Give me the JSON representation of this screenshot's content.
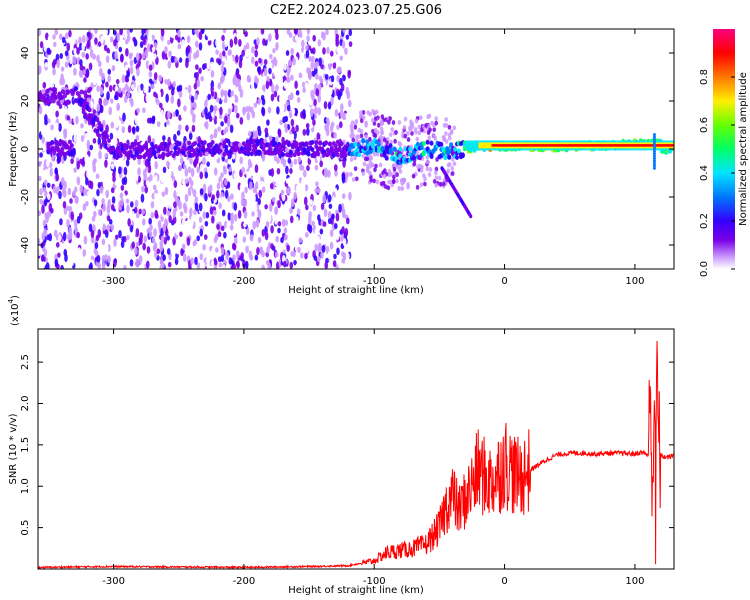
{
  "title": "C2E2.2024.023.07.25.G06",
  "chart_data": [
    {
      "type": "heatmap",
      "xlabel": "Height of straight line (km)",
      "ylabel": "Frequency (Hz)",
      "xlim": [
        -358,
        130
      ],
      "ylim": [
        -50,
        50
      ],
      "xticks": [
        -300,
        -200,
        -100,
        0,
        100
      ],
      "yticks": [
        -40,
        -20,
        0,
        20,
        40
      ],
      "grid": false,
      "colorbar": {
        "label": "Normalized spectral amplitude",
        "range": [
          0,
          1
        ],
        "ticks": [
          0.0,
          0.2,
          0.4,
          0.6,
          0.8
        ],
        "colormap": [
          "#ffffff",
          "#cc99ff",
          "#7a00e6",
          "#3300ff",
          "#0077ff",
          "#00e5ff",
          "#00ff66",
          "#66ff00",
          "#ffee00",
          "#ff7700",
          "#ff0000",
          "#ff0080"
        ]
      },
      "ridge": [
        {
          "x": -330,
          "y": 24
        },
        {
          "x": -300,
          "y": -1
        },
        {
          "x": -250,
          "y": 0
        },
        {
          "x": -200,
          "y": 1
        },
        {
          "x": -150,
          "y": 0
        },
        {
          "x": -120,
          "y": 0
        },
        {
          "x": -100,
          "y": 1
        },
        {
          "x": -80,
          "y": -3
        },
        {
          "x": -60,
          "y": 0
        },
        {
          "x": -40,
          "y": -1
        },
        {
          "x": -20,
          "y": 1
        },
        {
          "x": 0,
          "y": 1
        },
        {
          "x": 50,
          "y": 1
        },
        {
          "x": 100,
          "y": 2
        },
        {
          "x": 120,
          "y": 2
        }
      ]
    },
    {
      "type": "line",
      "xlabel": "Height of straight line (km)",
      "ylabel": "SNR (10 * v/v)",
      "yscale_note": "(x10",
      "yscale_exp": "4",
      "xlim": [
        -358,
        130
      ],
      "ylim": [
        0,
        2.9
      ],
      "xticks": [
        -300,
        -200,
        -100,
        0,
        100
      ],
      "yticks": [
        0.5,
        1.0,
        1.5,
        2.0,
        2.5
      ],
      "grid": false,
      "color": "#ff0000",
      "series": [
        {
          "x": [
            -358,
            -300,
            -200,
            -150,
            -120,
            -100,
            -90,
            -70,
            -60,
            -50,
            -45,
            -40,
            -35,
            -30,
            -25,
            -20,
            -15,
            -10,
            -5,
            0,
            5,
            10,
            15,
            20,
            25,
            30,
            40,
            50,
            60,
            70,
            80,
            90,
            100,
            105,
            110,
            112,
            114,
            115,
            116,
            117,
            118,
            120,
            125,
            130
          ],
          "y": [
            0.02,
            0.03,
            0.02,
            0.03,
            0.04,
            0.1,
            0.2,
            0.25,
            0.3,
            0.5,
            0.75,
            0.9,
            0.7,
            0.85,
            1.0,
            1.2,
            1.1,
            1.05,
            1.15,
            1.3,
            1.2,
            1.1,
            1.15,
            1.2,
            1.25,
            1.3,
            1.38,
            1.4,
            1.4,
            1.39,
            1.4,
            1.4,
            1.39,
            1.41,
            1.38,
            1.9,
            1.0,
            2.6,
            0.3,
            2.8,
            1.5,
            1.36,
            1.35,
            1.37
          ]
        }
      ]
    }
  ]
}
